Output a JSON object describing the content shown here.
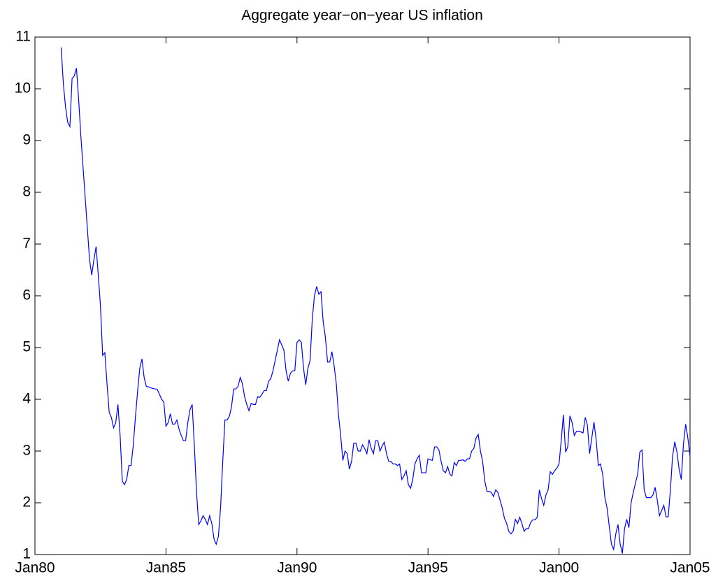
{
  "chart_data": {
    "type": "line",
    "title": "Aggregate year−on−year US inflation",
    "color": "#0000ff",
    "x": [
      "1981-01",
      "1981-02",
      "1981-03",
      "1981-04",
      "1981-05",
      "1981-06",
      "1981-07",
      "1981-08",
      "1981-09",
      "1981-10",
      "1981-11",
      "1981-12",
      "1982-01",
      "1982-02",
      "1982-03",
      "1982-04",
      "1982-05",
      "1982-06",
      "1982-07",
      "1982-08",
      "1982-09",
      "1982-10",
      "1982-11",
      "1982-12",
      "1983-01",
      "1983-02",
      "1983-03",
      "1983-04",
      "1983-05",
      "1983-06",
      "1983-07",
      "1983-08",
      "1983-09",
      "1983-10",
      "1983-11",
      "1983-12",
      "1984-01",
      "1984-02",
      "1984-03",
      "1984-04",
      "1984-05",
      "1984-06",
      "1984-07",
      "1984-08",
      "1984-09",
      "1984-10",
      "1984-11",
      "1984-12",
      "1985-01",
      "1985-02",
      "1985-03",
      "1985-04",
      "1985-05",
      "1985-06",
      "1985-07",
      "1985-08",
      "1985-09",
      "1985-10",
      "1985-11",
      "1985-12",
      "1986-01",
      "1986-02",
      "1986-03",
      "1986-04",
      "1986-05",
      "1986-06",
      "1986-07",
      "1986-08",
      "1986-09",
      "1986-10",
      "1986-11",
      "1986-12",
      "1987-01",
      "1987-02",
      "1987-03",
      "1987-04",
      "1987-05",
      "1987-06",
      "1987-07",
      "1987-08",
      "1987-09",
      "1987-10",
      "1987-11",
      "1987-12",
      "1988-01",
      "1988-02",
      "1988-03",
      "1988-04",
      "1988-05",
      "1988-06",
      "1988-07",
      "1988-08",
      "1988-09",
      "1988-10",
      "1988-11",
      "1988-12",
      "1989-01",
      "1989-02",
      "1989-03",
      "1989-04",
      "1989-05",
      "1989-06",
      "1989-07",
      "1989-08",
      "1989-09",
      "1989-10",
      "1989-11",
      "1989-12",
      "1990-01",
      "1990-02",
      "1990-03",
      "1990-04",
      "1990-05",
      "1990-06",
      "1990-07",
      "1990-08",
      "1990-09",
      "1990-10",
      "1990-11",
      "1990-12",
      "1991-01",
      "1991-02",
      "1991-03",
      "1991-04",
      "1991-05",
      "1991-06",
      "1991-07",
      "1991-08",
      "1991-09",
      "1991-10",
      "1991-11",
      "1991-12",
      "1992-01",
      "1992-02",
      "1992-03",
      "1992-04",
      "1992-05",
      "1992-06",
      "1992-07",
      "1992-08",
      "1992-09",
      "1992-10",
      "1992-11",
      "1992-12",
      "1993-01",
      "1993-02",
      "1993-03",
      "1993-04",
      "1993-05",
      "1993-06",
      "1993-07",
      "1993-08",
      "1993-09",
      "1993-10",
      "1993-11",
      "1993-12",
      "1994-01",
      "1994-02",
      "1994-03",
      "1994-04",
      "1994-05",
      "1994-06",
      "1994-07",
      "1994-08",
      "1994-09",
      "1994-10",
      "1994-11",
      "1994-12",
      "1995-01",
      "1995-02",
      "1995-03",
      "1995-04",
      "1995-05",
      "1995-06",
      "1995-07",
      "1995-08",
      "1995-09",
      "1995-10",
      "1995-11",
      "1995-12",
      "1996-01",
      "1996-02",
      "1996-03",
      "1996-04",
      "1996-05",
      "1996-06",
      "1996-07",
      "1996-08",
      "1996-09",
      "1996-10",
      "1996-11",
      "1996-12",
      "1997-01",
      "1997-02",
      "1997-03",
      "1997-04",
      "1997-05",
      "1997-06",
      "1997-07",
      "1997-08",
      "1997-09",
      "1997-10",
      "1997-11",
      "1997-12",
      "1998-01",
      "1998-02",
      "1998-03",
      "1998-04",
      "1998-05",
      "1998-06",
      "1998-07",
      "1998-08",
      "1998-09",
      "1998-10",
      "1998-11",
      "1998-12",
      "1999-01",
      "1999-02",
      "1999-03",
      "1999-04",
      "1999-05",
      "1999-06",
      "1999-07",
      "1999-08",
      "1999-09",
      "1999-10",
      "1999-11",
      "1999-12",
      "2000-01",
      "2000-02",
      "2000-03",
      "2000-04",
      "2000-05",
      "2000-06",
      "2000-07",
      "2000-08",
      "2000-09",
      "2000-10",
      "2000-11",
      "2000-12",
      "2001-01",
      "2001-02",
      "2001-03",
      "2001-04",
      "2001-05",
      "2001-06",
      "2001-07",
      "2001-08",
      "2001-09",
      "2001-10",
      "2001-11",
      "2001-12",
      "2002-01",
      "2002-02",
      "2002-03",
      "2002-04",
      "2002-05",
      "2002-06",
      "2002-07",
      "2002-08",
      "2002-09",
      "2002-10",
      "2002-11",
      "2002-12",
      "2003-01",
      "2003-02",
      "2003-03",
      "2003-04",
      "2003-05",
      "2003-06",
      "2003-07",
      "2003-08",
      "2003-09",
      "2003-10",
      "2003-11",
      "2003-12",
      "2004-01",
      "2004-02",
      "2004-03",
      "2004-04",
      "2004-05",
      "2004-06",
      "2004-07",
      "2004-08",
      "2004-09",
      "2004-10",
      "2004-11",
      "2004-12",
      "2005-01"
    ],
    "values": [
      10.8,
      10.1,
      9.65,
      9.35,
      9.27,
      10.2,
      10.25,
      10.4,
      9.8,
      9.1,
      8.5,
      7.9,
      7.3,
      6.7,
      6.4,
      6.7,
      6.95,
      6.4,
      5.8,
      4.85,
      4.9,
      4.3,
      3.75,
      3.65,
      3.45,
      3.55,
      3.9,
      3.3,
      2.42,
      2.35,
      2.45,
      2.72,
      2.72,
      3.1,
      3.65,
      4.15,
      4.6,
      4.78,
      4.42,
      4.25,
      4.24,
      4.22,
      4.21,
      4.2,
      4.19,
      4.1,
      4.0,
      3.95,
      3.48,
      3.55,
      3.72,
      3.52,
      3.52,
      3.6,
      3.42,
      3.3,
      3.2,
      3.2,
      3.55,
      3.8,
      3.9,
      3.1,
      2.2,
      1.58,
      1.65,
      1.75,
      1.68,
      1.58,
      1.75,
      1.6,
      1.3,
      1.2,
      1.35,
      1.9,
      2.8,
      3.6,
      3.6,
      3.67,
      3.85,
      4.2,
      4.2,
      4.25,
      4.42,
      4.3,
      4.05,
      3.9,
      3.78,
      3.92,
      3.9,
      3.9,
      4.05,
      4.04,
      4.1,
      4.17,
      4.17,
      4.35,
      4.4,
      4.55,
      4.75,
      4.95,
      5.15,
      5.05,
      4.95,
      4.55,
      4.35,
      4.5,
      4.55,
      4.55,
      5.1,
      5.15,
      5.1,
      4.6,
      4.28,
      4.6,
      4.75,
      5.55,
      6.0,
      6.18,
      6.03,
      6.08,
      5.5,
      5.2,
      4.72,
      4.72,
      4.92,
      4.65,
      4.3,
      3.7,
      3.3,
      2.82,
      3.0,
      2.95,
      2.65,
      2.8,
      3.15,
      3.15,
      3.0,
      3.0,
      3.12,
      3.05,
      2.95,
      3.22,
      3.05,
      2.95,
      3.2,
      3.2,
      3.0,
      3.1,
      3.17,
      2.95,
      2.8,
      2.8,
      2.75,
      2.75,
      2.72,
      2.75,
      2.45,
      2.52,
      2.62,
      2.35,
      2.28,
      2.45,
      2.75,
      2.85,
      2.92,
      2.58,
      2.58,
      2.58,
      2.85,
      2.83,
      2.82,
      3.08,
      3.08,
      3.02,
      2.8,
      2.62,
      2.58,
      2.7,
      2.55,
      2.52,
      2.78,
      2.72,
      2.82,
      2.82,
      2.83,
      2.8,
      2.85,
      2.85,
      3.0,
      3.05,
      3.25,
      3.32,
      3.0,
      2.8,
      2.42,
      2.22,
      2.22,
      2.2,
      2.12,
      2.25,
      2.2,
      2.05,
      1.9,
      1.7,
      1.6,
      1.45,
      1.4,
      1.45,
      1.68,
      1.6,
      1.72,
      1.6,
      1.45,
      1.5,
      1.5,
      1.62,
      1.67,
      1.67,
      1.72,
      2.25,
      2.08,
      1.95,
      2.15,
      2.25,
      2.6,
      2.55,
      2.62,
      2.67,
      2.75,
      3.2,
      3.7,
      2.98,
      3.08,
      3.68,
      3.55,
      3.3,
      3.38,
      3.38,
      3.37,
      3.35,
      3.65,
      3.5,
      2.95,
      3.25,
      3.56,
      3.22,
      2.72,
      2.75,
      2.55,
      2.1,
      1.9,
      1.55,
      1.2,
      1.1,
      1.4,
      1.58,
      1.2,
      1.02,
      1.5,
      1.68,
      1.52,
      2.0,
      2.2,
      2.38,
      2.55,
      2.98,
      3.02,
      2.25,
      2.1,
      2.1,
      2.1,
      2.15,
      2.3,
      2.05,
      1.75,
      1.85,
      1.95,
      1.73,
      1.73,
      2.25,
      2.9,
      3.18,
      2.98,
      2.65,
      2.45,
      3.15,
      3.52,
      3.25,
      2.9
    ],
    "xlim": [
      "1980-01",
      "2005-01"
    ],
    "xticks": [
      {
        "value": "1980-01",
        "label": "Jan80"
      },
      {
        "value": "1985-01",
        "label": "Jan85"
      },
      {
        "value": "1990-01",
        "label": "Jan90"
      },
      {
        "value": "1995-01",
        "label": "Jan95"
      },
      {
        "value": "2000-01",
        "label": "Jan00"
      },
      {
        "value": "2005-01",
        "label": "Jan05"
      }
    ],
    "ylim": [
      1,
      11
    ],
    "yticks": [
      1,
      2,
      3,
      4,
      5,
      6,
      7,
      8,
      9,
      10,
      11
    ]
  }
}
